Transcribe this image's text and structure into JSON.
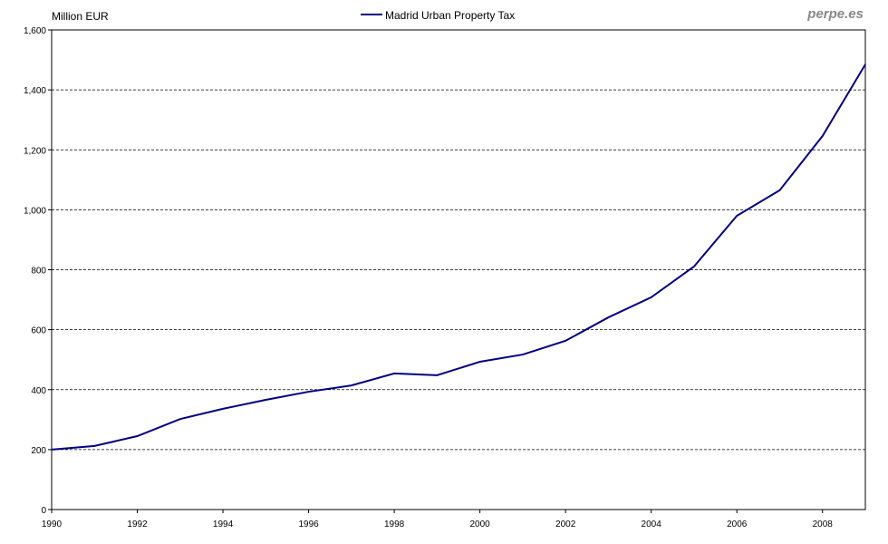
{
  "watermark": "perpe.es",
  "chart_data": {
    "type": "line",
    "title": "",
    "ylabel": "Million EUR",
    "xlabel": "",
    "ylim": [
      0,
      1600
    ],
    "xlim": [
      1990,
      2009
    ],
    "grid": "horizontal dashed",
    "legend_position": "top-center",
    "y_ticks": [
      "0",
      "200",
      "400",
      "600",
      "800",
      "1,000",
      "1,200",
      "1,400",
      "1,600"
    ],
    "y_tick_values": [
      0,
      200,
      400,
      600,
      800,
      1000,
      1200,
      1400,
      1600
    ],
    "x_ticks": [
      "1990",
      "1992",
      "1994",
      "1996",
      "1998",
      "2000",
      "2002",
      "2004",
      "2006",
      "2008"
    ],
    "x_tick_values": [
      1990,
      1992,
      1994,
      1996,
      1998,
      2000,
      2002,
      2004,
      2006,
      2008
    ],
    "series": [
      {
        "name": "Madrid Urban Property Tax",
        "color": "#000080",
        "x": [
          1990,
          1991,
          1992,
          1993,
          1994,
          1995,
          1996,
          1997,
          1998,
          1999,
          2000,
          2001,
          2002,
          2003,
          2004,
          2005,
          2006,
          2007,
          2008,
          2009
        ],
        "values": [
          200,
          212,
          245,
          302,
          336,
          366,
          393,
          414,
          454,
          448,
          493,
          517,
          563,
          641,
          708,
          811,
          980,
          1065,
          1246,
          1485
        ]
      }
    ]
  }
}
